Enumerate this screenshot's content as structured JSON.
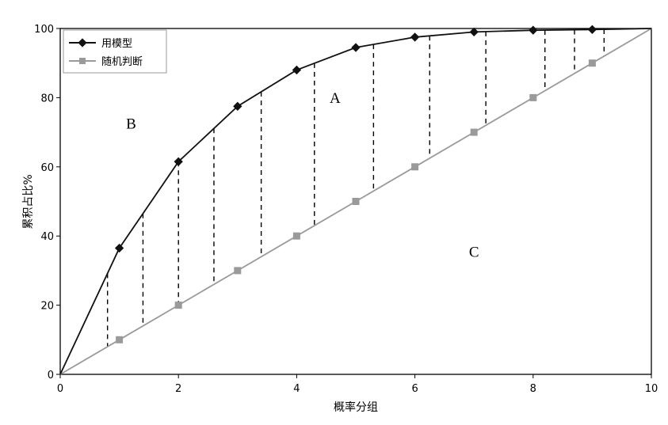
{
  "chart_data": {
    "type": "line",
    "xlabel": "概率分组",
    "ylabel": "累积占比%",
    "xlim": [
      0,
      10
    ],
    "ylim": [
      0,
      100
    ],
    "xticks": [
      "0",
      "2",
      "4",
      "6",
      "8",
      "10"
    ],
    "yticks": [
      "0",
      "20",
      "40",
      "60",
      "80",
      "100"
    ],
    "grid": false,
    "legend_position": "top-left",
    "series": [
      {
        "name": "用模型",
        "color": "#111111",
        "marker": "diamond",
        "x": [
          0,
          1,
          2,
          3,
          4,
          5,
          6,
          7,
          8,
          9,
          10
        ],
        "y": [
          0,
          36.5,
          61.5,
          77.5,
          88,
          94.5,
          97.5,
          99,
          99.5,
          99.7,
          100
        ]
      },
      {
        "name": "随机判断",
        "color": "#9a9a9a",
        "marker": "square",
        "x": [
          0,
          1,
          2,
          3,
          4,
          5,
          6,
          7,
          8,
          9,
          10
        ],
        "y": [
          0,
          10,
          20,
          30,
          40,
          50,
          60,
          70,
          80,
          90,
          100
        ]
      }
    ],
    "dashed_connectors_x": [
      0.8,
      1.4,
      2.0,
      2.6,
      3.4,
      4.3,
      5.3,
      6.25,
      7.2,
      8.2,
      8.7,
      9.2
    ],
    "annotations": [
      {
        "text": "A",
        "x": 4.65,
        "y": 78.5
      },
      {
        "text": "B",
        "x": 1.2,
        "y": 71
      },
      {
        "text": "C",
        "x": 7.0,
        "y": 34
      }
    ]
  }
}
